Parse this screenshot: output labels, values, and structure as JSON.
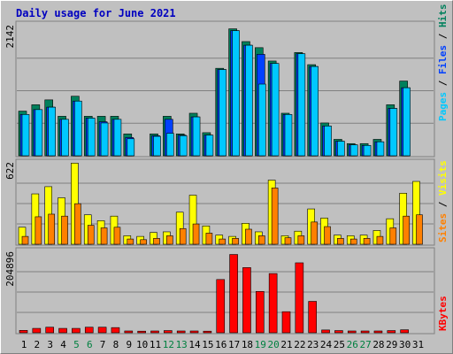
{
  "title": "Daily usage for June 2021",
  "colors": {
    "hits": "#00805c",
    "files": "#0040ff",
    "pages": "#00c8ff",
    "visits": "#ffff00",
    "sites": "#ff8000",
    "kbytes": "#ff0000",
    "weekend_label": "#008040",
    "weekday_label": "#000000"
  },
  "chart_data": [
    {
      "type": "bar",
      "name_label": "hits-files-pages",
      "max_label": "2142",
      "ymax": 2142,
      "legend": [
        "Pages",
        "Files",
        "Hits"
      ],
      "categories": [
        "1",
        "2",
        "3",
        "4",
        "5",
        "6",
        "7",
        "8",
        "9",
        "10",
        "11",
        "12",
        "13",
        "14",
        "15",
        "16",
        "17",
        "18",
        "19",
        "20",
        "21",
        "22",
        "23",
        "24",
        "25",
        "26",
        "27",
        "28",
        "29",
        "30",
        "31"
      ],
      "series": [
        {
          "name": "Hits",
          "values": [
            735,
            840,
            920,
            650,
            980,
            650,
            650,
            650,
            360,
            0,
            360,
            650,
            360,
            700,
            380,
            1440,
            2090,
            1880,
            1780,
            1560,
            700,
            1700,
            1500,
            540,
            270,
            200,
            200,
            270,
            840,
            1230,
            0
          ]
        },
        {
          "name": "Files",
          "values": [
            680,
            760,
            800,
            600,
            900,
            620,
            560,
            600,
            300,
            0,
            330,
            600,
            340,
            640,
            340,
            1420,
            2060,
            1820,
            1670,
            1520,
            680,
            1680,
            1470,
            490,
            240,
            180,
            170,
            230,
            780,
            1120,
            0
          ]
        },
        {
          "name": "Pages",
          "values": [
            680,
            760,
            800,
            600,
            900,
            620,
            540,
            600,
            280,
            0,
            320,
            370,
            330,
            640,
            340,
            1420,
            2060,
            1820,
            1180,
            1520,
            680,
            1680,
            1470,
            490,
            240,
            180,
            170,
            230,
            780,
            1120,
            0
          ]
        }
      ]
    },
    {
      "type": "bar",
      "name_label": "visits-sites",
      "max_label": "622",
      "ymax": 622,
      "legend": [
        "Sites",
        "Visits"
      ],
      "categories": [
        "1",
        "2",
        "3",
        "4",
        "5",
        "6",
        "7",
        "8",
        "9",
        "10",
        "11",
        "12",
        "13",
        "14",
        "15",
        "16",
        "17",
        "18",
        "19",
        "20",
        "21",
        "22",
        "23",
        "24",
        "25",
        "26",
        "27",
        "28",
        "29",
        "30",
        "31"
      ],
      "series": [
        {
          "name": "Visits",
          "values": [
            130,
            385,
            440,
            355,
            620,
            225,
            180,
            215,
            65,
            60,
            90,
            95,
            245,
            375,
            140,
            70,
            60,
            160,
            95,
            490,
            65,
            100,
            270,
            200,
            70,
            65,
            70,
            105,
            195,
            390,
            480
          ]
        },
        {
          "name": "Sites",
          "values": [
            60,
            210,
            230,
            215,
            310,
            145,
            125,
            130,
            40,
            35,
            45,
            65,
            120,
            155,
            85,
            40,
            45,
            115,
            65,
            430,
            50,
            65,
            170,
            135,
            45,
            40,
            45,
            60,
            125,
            215,
            225
          ]
        }
      ]
    },
    {
      "type": "bar",
      "name_label": "kbytes",
      "max_label": "204896",
      "ymax": 204896,
      "legend": [
        "KBytes"
      ],
      "categories": [
        "1",
        "2",
        "3",
        "4",
        "5",
        "6",
        "7",
        "8",
        "9",
        "10",
        "11",
        "12",
        "13",
        "14",
        "15",
        "16",
        "17",
        "18",
        "19",
        "20",
        "21",
        "22",
        "23",
        "24",
        "25",
        "26",
        "27",
        "28",
        "29",
        "30",
        "31"
      ],
      "series": [
        {
          "name": "KBytes",
          "values": [
            6000,
            11000,
            14000,
            11000,
            11000,
            14000,
            14000,
            13000,
            4500,
            4000,
            4500,
            5500,
            4500,
            4500,
            4000,
            134000,
            197000,
            164000,
            104000,
            149000,
            53000,
            176000,
            79000,
            7000,
            5500,
            4500,
            4500,
            4500,
            5500,
            7500,
            0
          ]
        }
      ]
    }
  ]
}
